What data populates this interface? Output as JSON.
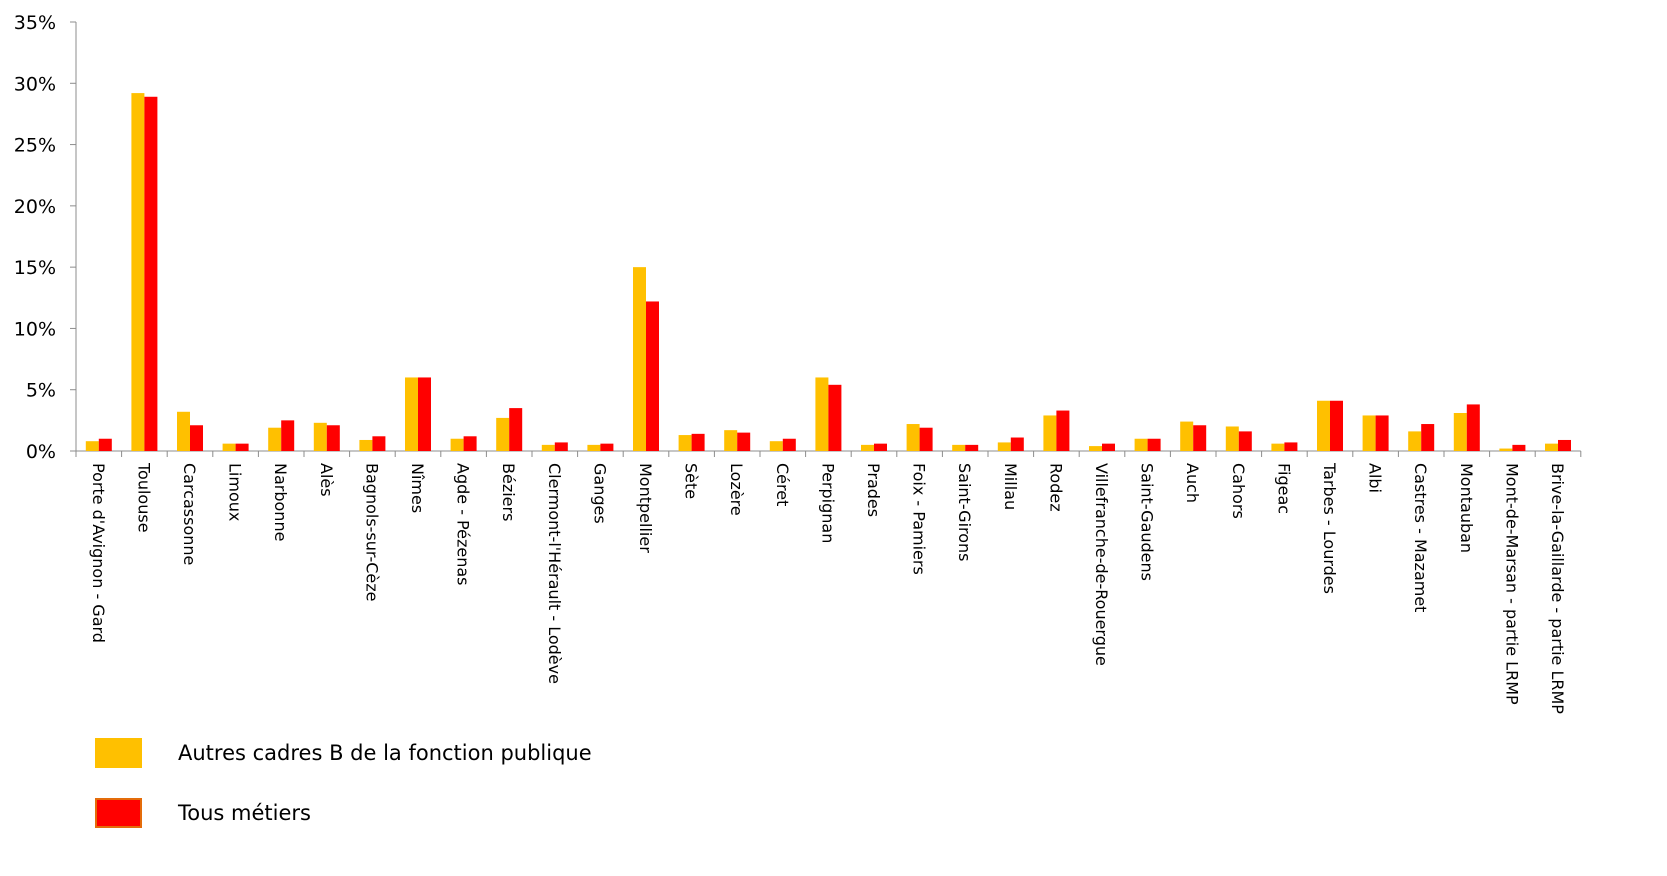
{
  "chart_data": {
    "type": "bar",
    "title": "",
    "xlabel": "",
    "ylabel": "",
    "ylim": [
      0,
      0.35
    ],
    "yticks": [
      {
        "value": 0,
        "label": "0%"
      },
      {
        "value": 0.05,
        "label": "5%"
      },
      {
        "value": 0.1,
        "label": "10%"
      },
      {
        "value": 0.15,
        "label": "15%"
      },
      {
        "value": 0.2,
        "label": "20%"
      },
      {
        "value": 0.25,
        "label": "25%"
      },
      {
        "value": 0.3,
        "label": "30%"
      },
      {
        "value": 0.35,
        "label": "35%"
      }
    ],
    "grid": false,
    "legend_position": "bottom-left",
    "categories": [
      "Porte d'Avignon - Gard",
      "Toulouse",
      "Carcassonne",
      "Limoux",
      "Narbonne",
      "Alès",
      "Bagnols-sur-Cèze",
      "Nîmes",
      "Agde - Pézenas",
      "Béziers",
      "Clermont-l'Hérault - Lodève",
      "Ganges",
      "Montpellier",
      "Sète",
      "Lozère",
      "Céret",
      "Perpignan",
      "Prades",
      "Foix - Pamiers",
      "Saint-Girons",
      "Millau",
      "Rodez",
      "Villefranche-de-Rouergue",
      "Saint-Gaudens",
      "Auch",
      "Cahors",
      "Figeac",
      "Tarbes - Lourdes",
      "Albi",
      "Castres - Mazamet",
      "Montauban",
      "Mont-de-Marsan - partie LRMP",
      "Brive-la-Gaillarde - partie LRMP"
    ],
    "series": [
      {
        "name": "Autres cadres B de la fonction publique",
        "color": "#FFC000",
        "values": [
          0.008,
          0.292,
          0.032,
          0.006,
          0.019,
          0.023,
          0.009,
          0.06,
          0.01,
          0.027,
          0.005,
          0.005,
          0.15,
          0.013,
          0.017,
          0.008,
          0.06,
          0.005,
          0.022,
          0.005,
          0.007,
          0.029,
          0.004,
          0.01,
          0.024,
          0.02,
          0.006,
          0.041,
          0.029,
          0.016,
          0.031,
          0.002,
          0.006
        ]
      },
      {
        "name": "Tous métiers",
        "color": "#FF0000",
        "values": [
          0.01,
          0.289,
          0.021,
          0.006,
          0.025,
          0.021,
          0.012,
          0.06,
          0.012,
          0.035,
          0.007,
          0.006,
          0.122,
          0.014,
          0.015,
          0.01,
          0.054,
          0.006,
          0.019,
          0.005,
          0.011,
          0.033,
          0.006,
          0.01,
          0.021,
          0.016,
          0.007,
          0.041,
          0.029,
          0.022,
          0.038,
          0.005,
          0.009
        ]
      }
    ]
  }
}
